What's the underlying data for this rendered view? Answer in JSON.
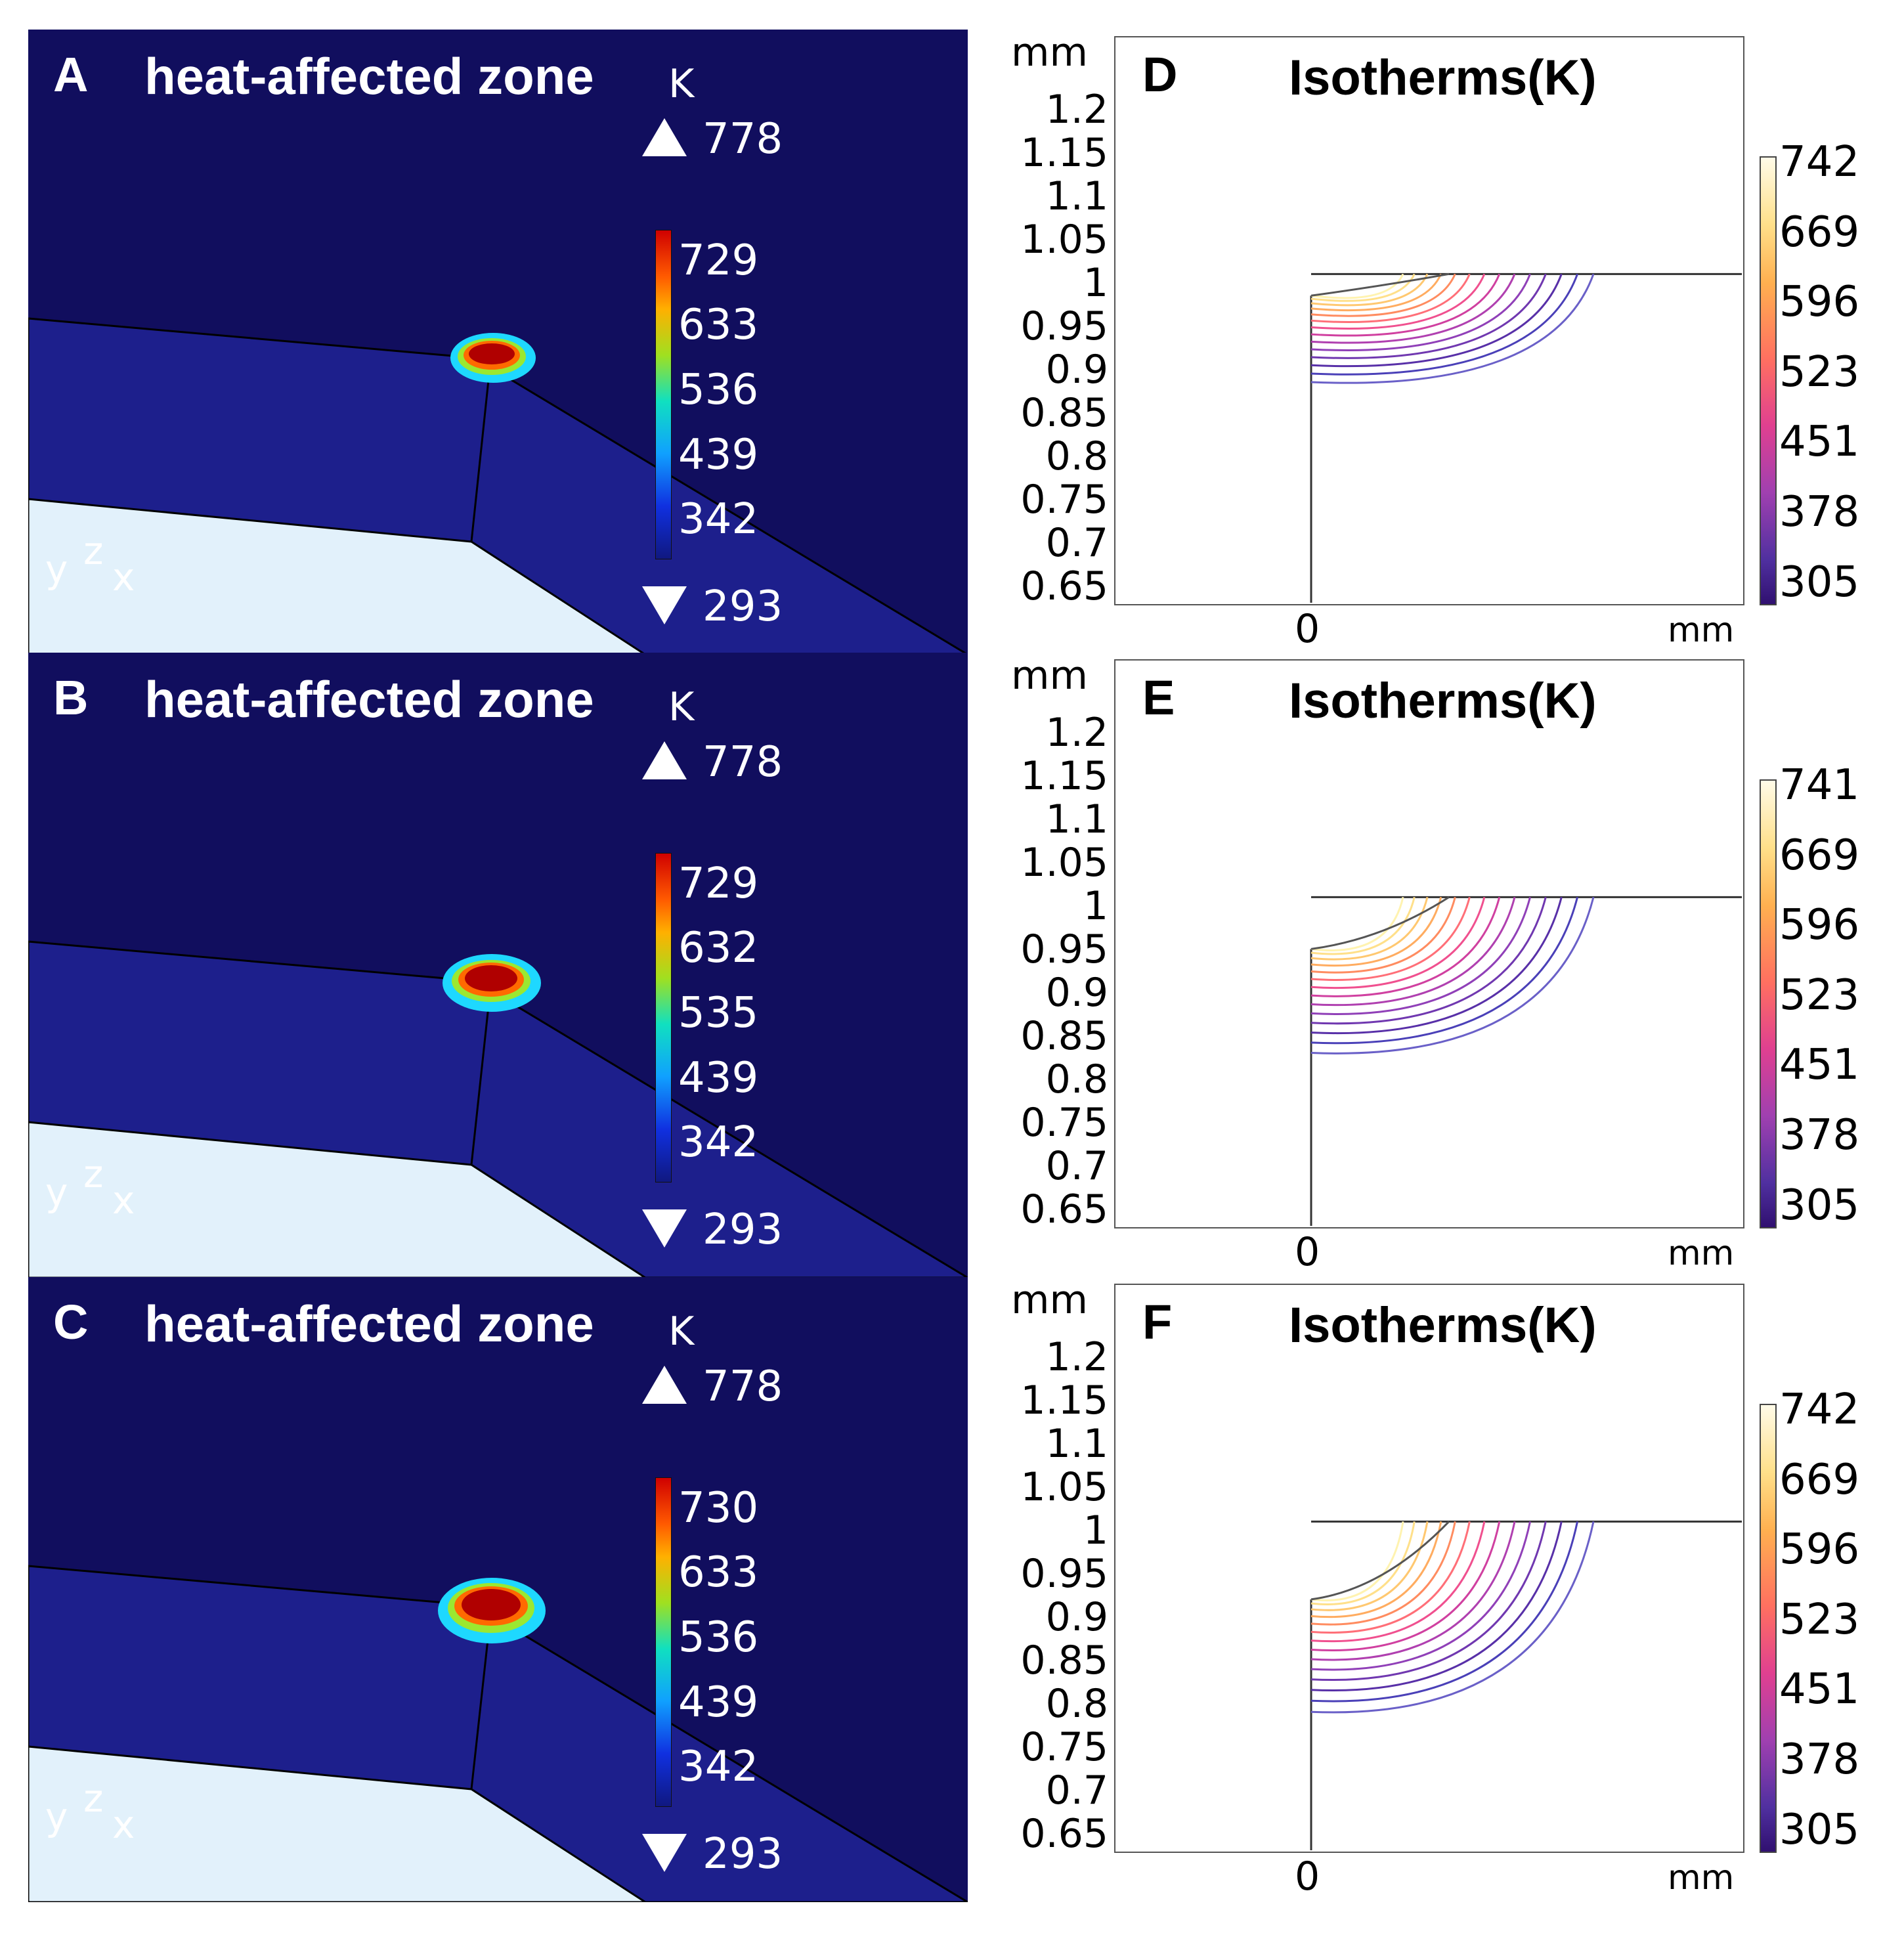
{
  "panels_3d": [
    {
      "letter": "A",
      "title": "heat-affected zone",
      "unit": "K",
      "max": "778",
      "min": "293",
      "ticks": [
        "729",
        "633",
        "536",
        "439",
        "342"
      ],
      "axes": {
        "y": "y",
        "z": "z",
        "x": "x"
      }
    },
    {
      "letter": "B",
      "title": "heat-affected zone",
      "unit": "K",
      "max": "778",
      "min": "293",
      "ticks": [
        "729",
        "632",
        "535",
        "439",
        "342"
      ],
      "axes": {
        "y": "y",
        "z": "z",
        "x": "x"
      }
    },
    {
      "letter": "C",
      "title": "heat-affected zone",
      "unit": "K",
      "max": "778",
      "min": "293",
      "ticks": [
        "730",
        "633",
        "536",
        "439",
        "342"
      ],
      "axes": {
        "y": "y",
        "z": "z",
        "x": "x"
      }
    }
  ],
  "panels_2d": [
    {
      "letter": "D",
      "title": "Isotherms(K)",
      "y_unit": "mm",
      "x_unit": "mm",
      "x_tick": "0",
      "y_ticks": [
        "1.2",
        "1.15",
        "1.1",
        "1.05",
        "1",
        "0.95",
        "0.9",
        "0.85",
        "0.8",
        "0.75",
        "0.7",
        "0.65"
      ],
      "colorbar": [
        "742",
        "669",
        "596",
        "523",
        "451",
        "378",
        "305"
      ],
      "pool_depth_mm": 0.975,
      "outer_isotherm_depth_mm": 0.875
    },
    {
      "letter": "E",
      "title": "Isotherms(K)",
      "y_unit": "mm",
      "x_unit": "mm",
      "x_tick": "0",
      "y_ticks": [
        "1.2",
        "1.15",
        "1.1",
        "1.05",
        "1",
        "0.95",
        "0.9",
        "0.85",
        "0.8",
        "0.75",
        "0.7",
        "0.65"
      ],
      "colorbar": [
        "741",
        "669",
        "596",
        "523",
        "451",
        "378",
        "305"
      ],
      "pool_depth_mm": 0.94,
      "outer_isotherm_depth_mm": 0.82
    },
    {
      "letter": "F",
      "title": "Isotherms(K)",
      "y_unit": "mm",
      "x_unit": "mm",
      "x_tick": "0",
      "y_ticks": [
        "1.2",
        "1.15",
        "1.1",
        "1.05",
        "1",
        "0.95",
        "0.9",
        "0.85",
        "0.8",
        "0.75",
        "0.7",
        "0.65"
      ],
      "colorbar": [
        "742",
        "669",
        "596",
        "523",
        "451",
        "378",
        "305"
      ],
      "pool_depth_mm": 0.91,
      "outer_isotherm_depth_mm": 0.78
    }
  ],
  "colors": {
    "bg_dark": "#110e5e",
    "surface": "#1d1f8c",
    "light": "#e2f1fb",
    "hot": "#b00000"
  }
}
